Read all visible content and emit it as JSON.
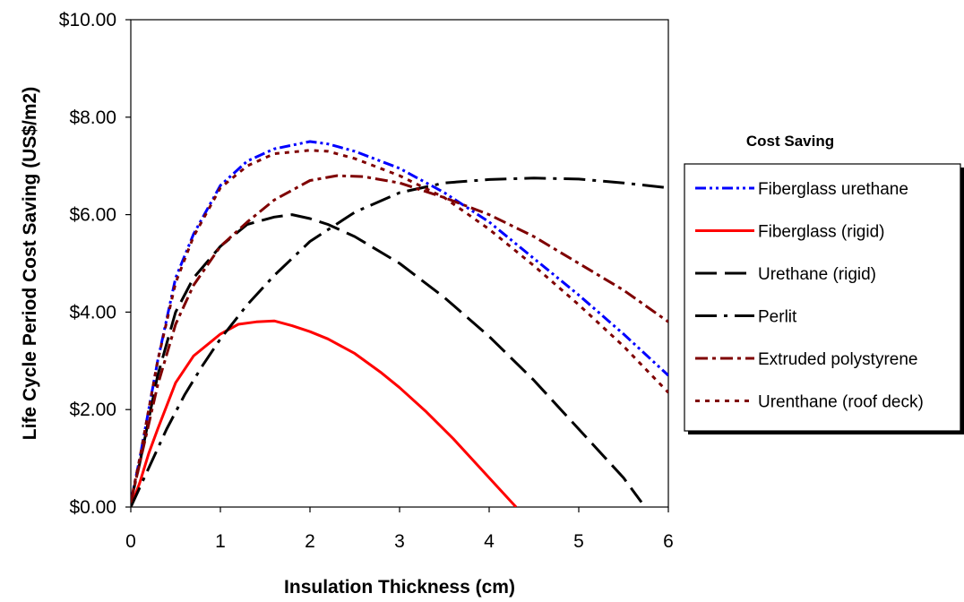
{
  "chart_data": {
    "type": "line",
    "title": "",
    "xlabel": "Insulation Thickness (cm)",
    "ylabel": "Life Cycle Period Cost Saving (US$/m2)",
    "xlim": [
      0,
      6
    ],
    "ylim": [
      0,
      10
    ],
    "x_ticks": [
      "0",
      "1",
      "2",
      "3",
      "4",
      "5",
      "6"
    ],
    "y_ticks": [
      "$0.00",
      "$2.00",
      "$4.00",
      "$6.00",
      "$8.00",
      "$10.00"
    ],
    "grid": false,
    "legend": {
      "title": "Cost Saving",
      "placement": "right"
    },
    "series": [
      {
        "name": "Fiberglass urethane",
        "color": "#0000ff",
        "dash": "dashdotdot",
        "x": [
          0,
          0.1,
          0.2,
          0.3,
          0.5,
          0.7,
          1.0,
          1.3,
          1.6,
          2.0,
          2.2,
          2.5,
          3.0,
          3.5,
          4.0,
          4.5,
          5.0,
          5.5,
          6.0
        ],
        "y": [
          0.1,
          1.0,
          2.0,
          3.0,
          4.7,
          5.6,
          6.6,
          7.1,
          7.35,
          7.5,
          7.45,
          7.3,
          6.95,
          6.45,
          5.85,
          5.1,
          4.35,
          3.55,
          2.7
        ]
      },
      {
        "name": "Fiberglass (rigid)",
        "color": "#ff0000",
        "dash": "solid",
        "x": [
          0,
          0.1,
          0.2,
          0.3,
          0.5,
          0.7,
          1.0,
          1.2,
          1.4,
          1.6,
          1.8,
          2.0,
          2.2,
          2.5,
          2.8,
          3.0,
          3.3,
          3.6,
          4.0,
          4.3
        ],
        "y": [
          0.0,
          0.5,
          1.1,
          1.6,
          2.55,
          3.1,
          3.55,
          3.75,
          3.8,
          3.82,
          3.72,
          3.6,
          3.45,
          3.15,
          2.75,
          2.45,
          1.95,
          1.4,
          0.6,
          0.0
        ]
      },
      {
        "name": "Urethane (rigid)",
        "color": "#000000",
        "dash": "longdash",
        "x": [
          0,
          0.1,
          0.2,
          0.3,
          0.5,
          0.7,
          1.0,
          1.3,
          1.6,
          1.8,
          2.0,
          2.2,
          2.5,
          3.0,
          3.5,
          4.0,
          4.5,
          5.0,
          5.5,
          5.7
        ],
        "y": [
          0.1,
          0.9,
          1.8,
          2.7,
          4.0,
          4.7,
          5.35,
          5.8,
          5.95,
          6.0,
          5.92,
          5.8,
          5.55,
          5.0,
          4.3,
          3.5,
          2.6,
          1.6,
          0.6,
          0.1
        ]
      },
      {
        "name": "Perlit",
        "color": "#000000",
        "dash": "longdashdot",
        "x": [
          0,
          0.2,
          0.4,
          0.6,
          0.8,
          1.0,
          1.3,
          1.6,
          2.0,
          2.5,
          3.0,
          3.5,
          4.0,
          4.5,
          5.0,
          5.5,
          6.0
        ],
        "y": [
          0.0,
          0.8,
          1.6,
          2.3,
          2.9,
          3.45,
          4.15,
          4.75,
          5.45,
          6.05,
          6.45,
          6.65,
          6.72,
          6.75,
          6.73,
          6.65,
          6.55
        ]
      },
      {
        "name": "Extruded polystyrene",
        "color": "#7f0000",
        "dash": "dashdot",
        "x": [
          0,
          0.1,
          0.2,
          0.3,
          0.5,
          0.7,
          1.0,
          1.3,
          1.6,
          2.0,
          2.3,
          2.6,
          3.0,
          3.5,
          4.0,
          4.5,
          5.0,
          5.5,
          6.0
        ],
        "y": [
          0.1,
          0.9,
          1.7,
          2.5,
          3.75,
          4.55,
          5.35,
          5.85,
          6.3,
          6.7,
          6.8,
          6.78,
          6.65,
          6.35,
          6.0,
          5.55,
          5.0,
          4.45,
          3.8
        ]
      },
      {
        "name": "Urenthane (roof deck)",
        "color": "#7f0000",
        "dash": "dotted",
        "x": [
          0,
          0.1,
          0.2,
          0.3,
          0.5,
          0.7,
          1.0,
          1.3,
          1.6,
          2.0,
          2.2,
          2.5,
          3.0,
          3.5,
          4.0,
          4.5,
          5.0,
          5.5,
          6.0
        ],
        "y": [
          0.1,
          1.0,
          2.0,
          3.0,
          4.6,
          5.55,
          6.55,
          7.0,
          7.25,
          7.32,
          7.3,
          7.15,
          6.8,
          6.35,
          5.7,
          4.95,
          4.15,
          3.3,
          2.35
        ]
      }
    ]
  }
}
